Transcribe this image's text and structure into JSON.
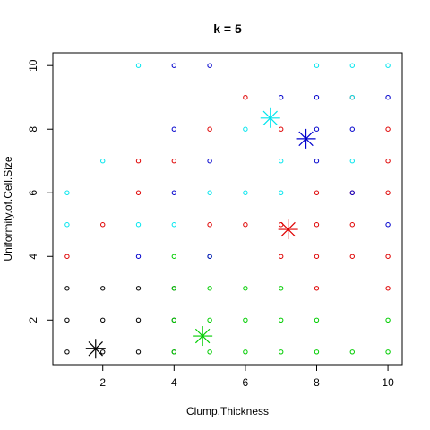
{
  "chart_data": {
    "type": "scatter",
    "title": "k = 5",
    "xlabel": "Clump.Thickness",
    "ylabel": "Uniformity.of.Cell.Size",
    "xlim": [
      0.6,
      10.4
    ],
    "ylim": [
      0.6,
      10.4
    ],
    "x_ticks": [
      "2",
      "4",
      "6",
      "8",
      "10"
    ],
    "y_ticks": [
      "2",
      "4",
      "6",
      "8",
      "10"
    ],
    "grid": false,
    "legend": "none",
    "series": [
      {
        "color": "#000000",
        "points": [
          [
            1,
            1
          ],
          [
            1,
            2
          ],
          [
            1,
            3
          ],
          [
            2,
            1
          ],
          [
            2,
            2
          ],
          [
            2,
            3
          ],
          [
            3,
            1
          ],
          [
            3,
            2
          ],
          [
            3,
            3
          ],
          [
            4,
            1
          ],
          [
            4,
            2
          ],
          [
            4,
            3
          ]
        ]
      },
      {
        "color": "#00CD00",
        "points": [
          [
            4,
            1
          ],
          [
            4,
            2
          ],
          [
            4,
            3
          ],
          [
            4,
            4
          ],
          [
            5,
            1
          ],
          [
            5,
            2
          ],
          [
            5,
            3
          ],
          [
            5,
            4
          ],
          [
            6,
            1
          ],
          [
            6,
            2
          ],
          [
            6,
            3
          ],
          [
            7,
            1
          ],
          [
            7,
            2
          ],
          [
            7,
            3
          ],
          [
            8,
            1
          ],
          [
            8,
            2
          ],
          [
            9,
            1
          ],
          [
            10,
            1
          ],
          [
            10,
            2
          ]
        ]
      },
      {
        "color": "#DF0000",
        "points": [
          [
            1,
            4
          ],
          [
            2,
            5
          ],
          [
            3,
            6
          ],
          [
            3,
            7
          ],
          [
            4,
            7
          ],
          [
            5,
            5
          ],
          [
            5,
            8
          ],
          [
            6,
            5
          ],
          [
            6,
            9
          ],
          [
            7,
            4
          ],
          [
            7,
            5
          ],
          [
            7,
            8
          ],
          [
            8,
            3
          ],
          [
            8,
            4
          ],
          [
            8,
            5
          ],
          [
            8,
            6
          ],
          [
            9,
            4
          ],
          [
            9,
            5
          ],
          [
            9,
            6
          ],
          [
            9,
            9
          ],
          [
            10,
            3
          ],
          [
            10,
            4
          ],
          [
            10,
            6
          ],
          [
            10,
            7
          ],
          [
            10,
            8
          ]
        ]
      },
      {
        "color": "#00E5EE",
        "points": [
          [
            1,
            5
          ],
          [
            1,
            6
          ],
          [
            2,
            7
          ],
          [
            3,
            5
          ],
          [
            3,
            10
          ],
          [
            4,
            5
          ],
          [
            5,
            6
          ],
          [
            6,
            6
          ],
          [
            6,
            8
          ],
          [
            7,
            6
          ],
          [
            7,
            7
          ],
          [
            8,
            10
          ],
          [
            9,
            7
          ],
          [
            9,
            9
          ],
          [
            9,
            10
          ],
          [
            10,
            10
          ]
        ]
      },
      {
        "color": "#0000CD",
        "points": [
          [
            3,
            4
          ],
          [
            4,
            6
          ],
          [
            4,
            8
          ],
          [
            4,
            10
          ],
          [
            5,
            4
          ],
          [
            5,
            7
          ],
          [
            5,
            10
          ],
          [
            7,
            9
          ],
          [
            8,
            7
          ],
          [
            8,
            8
          ],
          [
            8,
            9
          ],
          [
            9,
            6
          ],
          [
            9,
            8
          ],
          [
            10,
            5
          ],
          [
            10,
            9
          ]
        ]
      }
    ],
    "centers": [
      {
        "color": "#000000",
        "x": 1.8,
        "y": 1.1
      },
      {
        "color": "#00CD00",
        "x": 4.8,
        "y": 1.5
      },
      {
        "color": "#DF0000",
        "x": 7.2,
        "y": 4.85
      },
      {
        "color": "#00E5EE",
        "x": 6.7,
        "y": 8.35
      },
      {
        "color": "#0000CD",
        "x": 7.7,
        "y": 7.7
      }
    ]
  }
}
